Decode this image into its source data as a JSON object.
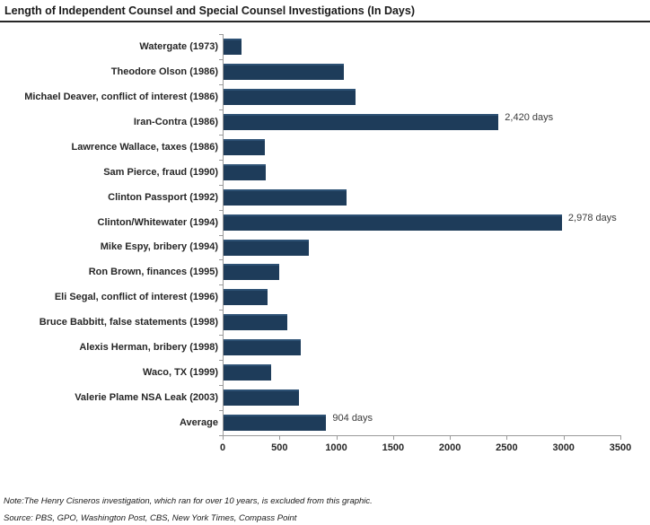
{
  "title": "Length of Independent Counsel and Special Counsel Investigations (In Days)",
  "note": "Note:The Henry Cisneros investigation, which ran for over 10 years, is excluded from this graphic.",
  "source": "Source: PBS, GPO, Washington Post, CBS, New York Times, Compass Point",
  "colors": {
    "bar_fill": "#1e3c5a",
    "bar_top_edge": "#2d5174",
    "axis_line": "#9a9a9a",
    "title_rule": "#262626",
    "text": "#262626"
  },
  "chart_data": {
    "type": "bar",
    "orientation": "horizontal",
    "title": "Length of Independent Counsel and Special Counsel Investigations (In Days)",
    "xlabel": "",
    "ylabel": "",
    "xlim": [
      0,
      3500
    ],
    "x_ticks": [
      0,
      500,
      1000,
      1500,
      2000,
      2500,
      3000,
      3500
    ],
    "grid": false,
    "legend": false,
    "rows": [
      {
        "category": "Watergate (1973)",
        "value": 160,
        "data_label": null
      },
      {
        "category": "Theodore Olson (1986)",
        "value": 1055,
        "data_label": null
      },
      {
        "category": "Michael Deaver, conflict of interest (1986)",
        "value": 1165,
        "data_label": null
      },
      {
        "category": "Iran-Contra (1986)",
        "value": 2420,
        "data_label": "2,420 days"
      },
      {
        "category": "Lawrence Wallace, taxes (1986)",
        "value": 365,
        "data_label": null
      },
      {
        "category": "Sam Pierce, fraud (1990)",
        "value": 370,
        "data_label": null
      },
      {
        "category": "Clinton Passport (1992)",
        "value": 1080,
        "data_label": null
      },
      {
        "category": "Clinton/Whitewater (1994)",
        "value": 2978,
        "data_label": "2,978 days"
      },
      {
        "category": "Mike Espy, bribery (1994)",
        "value": 750,
        "data_label": null
      },
      {
        "category": "Ron Brown, finances (1995)",
        "value": 490,
        "data_label": null
      },
      {
        "category": "Eli Segal, conflict of interest (1996)",
        "value": 385,
        "data_label": null
      },
      {
        "category": "Bruce Babbitt, false statements (1998)",
        "value": 560,
        "data_label": null
      },
      {
        "category": "Alexis Herman, bribery (1998)",
        "value": 680,
        "data_label": null
      },
      {
        "category": "Waco, TX (1999)",
        "value": 420,
        "data_label": null
      },
      {
        "category": "Valerie Plame NSA Leak (2003)",
        "value": 660,
        "data_label": null
      },
      {
        "category": "Average",
        "value": 904,
        "data_label": "904 days"
      }
    ]
  }
}
